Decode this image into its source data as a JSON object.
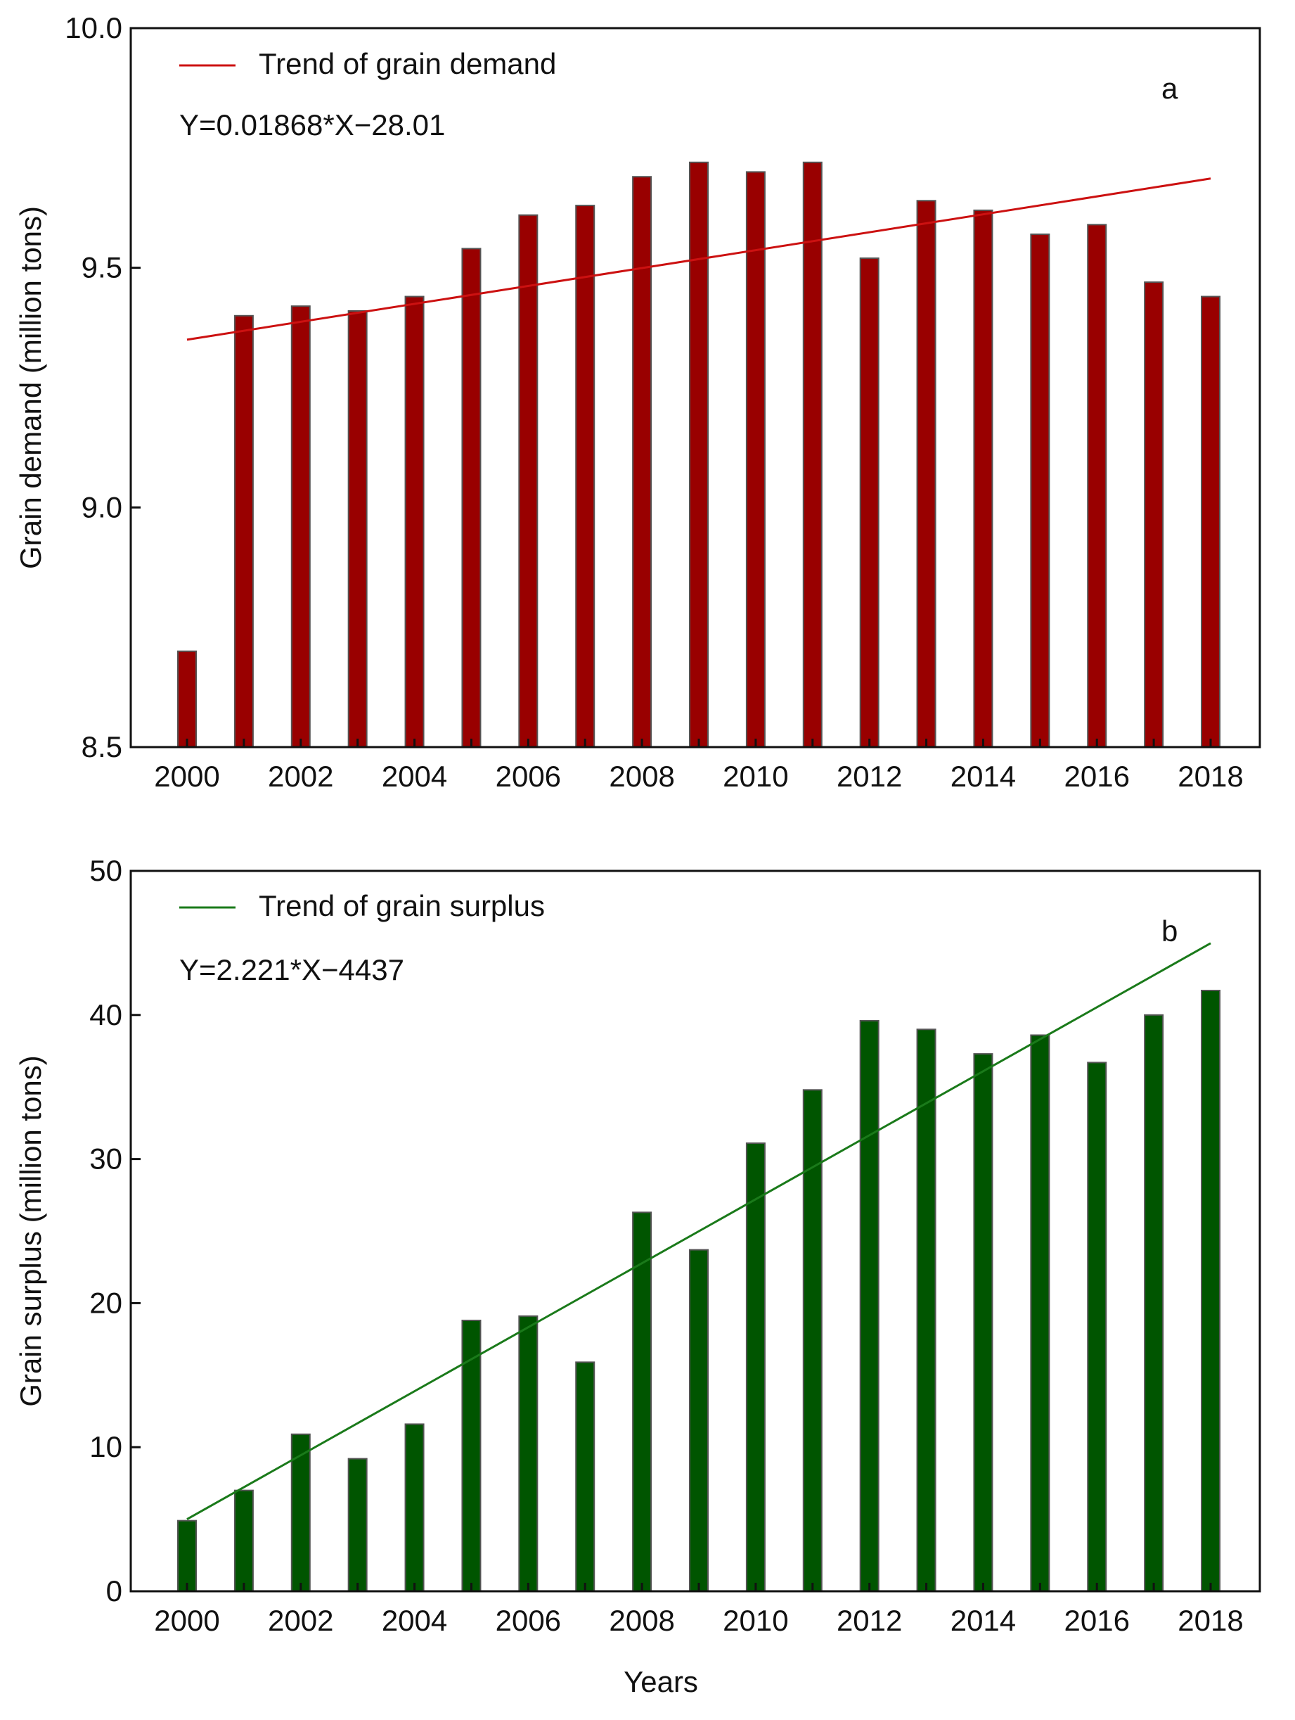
{
  "chart_data": [
    {
      "type": "bar",
      "panel_label": "a",
      "x_categories": [
        2000,
        2001,
        2002,
        2003,
        2004,
        2005,
        2006,
        2007,
        2008,
        2009,
        2010,
        2011,
        2012,
        2013,
        2014,
        2015,
        2016,
        2017,
        2018
      ],
      "x_tick_labels": [
        "2000",
        "2002",
        "2004",
        "2006",
        "2008",
        "2010",
        "2012",
        "2014",
        "2016",
        "2018"
      ],
      "series": [
        {
          "name": "Grain demand",
          "color": "#990000",
          "values": [
            8.7,
            9.4,
            9.42,
            9.41,
            9.44,
            9.54,
            9.61,
            9.63,
            9.69,
            9.72,
            9.7,
            9.72,
            9.52,
            9.64,
            9.62,
            9.57,
            9.59,
            9.47,
            9.44
          ]
        }
      ],
      "trend": {
        "label": "Trend of grain demand",
        "equation": "Y=0.01868*X−28.01",
        "slope": 0.01868,
        "intercept": -28.01,
        "color": "#cc1111"
      },
      "ylabel": "Grain demand (million tons)",
      "xlabel": "",
      "ylim": [
        8.5,
        10.0
      ],
      "y_ticks": [
        8.5,
        9.0,
        9.5,
        10.0
      ],
      "y_tick_labels": [
        "8.5",
        "9.0",
        "9.5",
        "10.0"
      ]
    },
    {
      "type": "bar",
      "panel_label": "b",
      "x_categories": [
        2000,
        2001,
        2002,
        2003,
        2004,
        2005,
        2006,
        2007,
        2008,
        2009,
        2010,
        2011,
        2012,
        2013,
        2014,
        2015,
        2016,
        2017,
        2018
      ],
      "x_tick_labels": [
        "2000",
        "2002",
        "2004",
        "2006",
        "2008",
        "2010",
        "2012",
        "2014",
        "2016",
        "2018"
      ],
      "series": [
        {
          "name": "Grain surplus",
          "color": "#005500",
          "values": [
            4.9,
            7.0,
            10.9,
            9.2,
            11.6,
            18.8,
            19.1,
            15.9,
            26.3,
            23.7,
            31.1,
            34.8,
            39.6,
            39.0,
            37.3,
            38.6,
            36.7,
            40.0,
            41.7
          ]
        }
      ],
      "trend": {
        "label": "Trend of grain surplus",
        "equation": "Y=2.221*X−4437",
        "slope": 2.221,
        "intercept": -4437,
        "color": "#1a7a1a"
      },
      "ylabel": "Grain surplus (million tons)",
      "xlabel": "Years",
      "ylim": [
        0,
        50
      ],
      "y_ticks": [
        0,
        10,
        20,
        30,
        40,
        50
      ],
      "y_tick_labels": [
        "0",
        "10",
        "20",
        "30",
        "40",
        "50"
      ]
    }
  ]
}
